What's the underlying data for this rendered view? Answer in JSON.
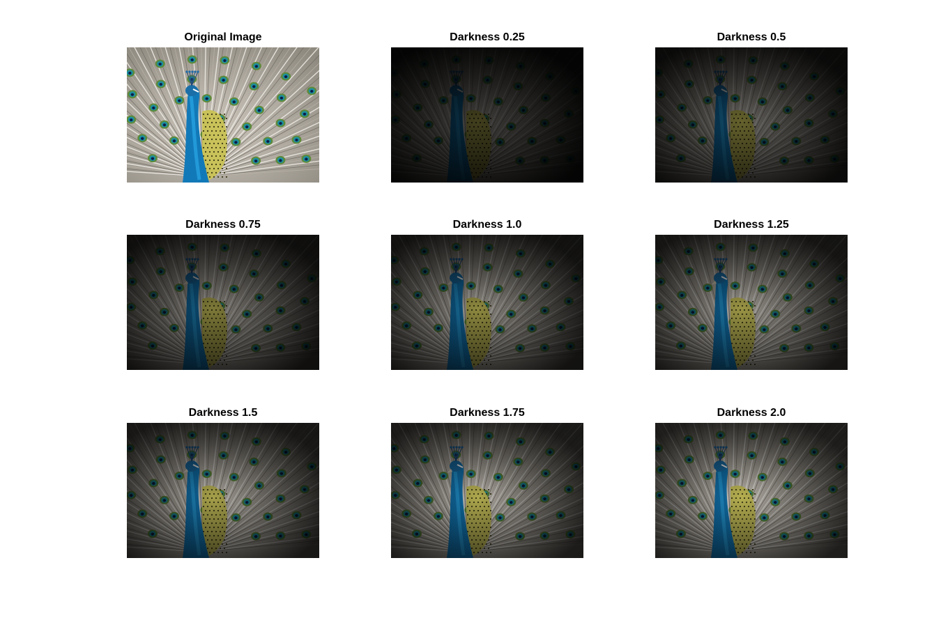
{
  "figure": {
    "panels": [
      {
        "title": "Original Image",
        "image": "peacock-photo",
        "vignette_strength": 0.0,
        "brightness": 1.1
      },
      {
        "title": "Darkness 0.25",
        "image": "peacock-photo",
        "vignette_strength": 0.97,
        "brightness": 0.32
      },
      {
        "title": "Darkness 0.5",
        "image": "peacock-photo",
        "vignette_strength": 0.93,
        "brightness": 0.5
      },
      {
        "title": "Darkness 0.75",
        "image": "peacock-photo",
        "vignette_strength": 0.9,
        "brightness": 0.62
      },
      {
        "title": "Darkness 1.0",
        "image": "peacock-photo",
        "vignette_strength": 0.88,
        "brightness": 0.7
      },
      {
        "title": "Darkness 1.25",
        "image": "peacock-photo",
        "vignette_strength": 0.86,
        "brightness": 0.76
      },
      {
        "title": "Darkness 1.5",
        "image": "peacock-photo",
        "vignette_strength": 0.84,
        "brightness": 0.82
      },
      {
        "title": "Darkness 1.75",
        "image": "peacock-photo",
        "vignette_strength": 0.82,
        "brightness": 0.86
      },
      {
        "title": "Darkness 2.0",
        "image": "peacock-photo",
        "vignette_strength": 0.8,
        "brightness": 0.9
      }
    ]
  }
}
